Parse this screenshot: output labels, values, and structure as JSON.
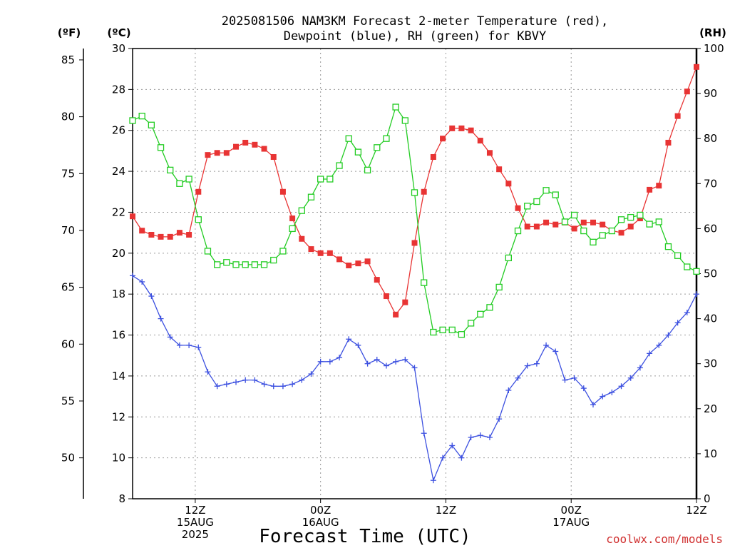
{
  "chart_data": {
    "type": "line",
    "title_line1": "2025081506 NAM3KM Forecast 2-meter Temperature (red),",
    "title_line2": "Dewpoint (blue), RH (green) for KBVY",
    "xlabel": "Forecast Time (UTC)",
    "credit": "coolwx.com/models",
    "left_unit_f": "(ºF)",
    "left_unit_c": "(ºC)",
    "right_unit": "(RH)",
    "x_start_hour": 6,
    "x_end_hour": 60,
    "x_ticks": [
      {
        "hour": 12,
        "lines": [
          "12Z",
          "15AUG",
          "2025"
        ]
      },
      {
        "hour": 24,
        "lines": [
          "00Z",
          "16AUG"
        ]
      },
      {
        "hour": 36,
        "lines": [
          "12Z"
        ]
      },
      {
        "hour": 48,
        "lines": [
          "00Z",
          "17AUG"
        ]
      },
      {
        "hour": 60,
        "lines": [
          "12Z"
        ]
      }
    ],
    "celsius_axis": {
      "min": 8,
      "max": 30,
      "ticks": [
        8,
        10,
        12,
        14,
        16,
        18,
        20,
        22,
        24,
        26,
        28,
        30
      ]
    },
    "fahrenheit_axis": {
      "ticks": [
        50,
        55,
        60,
        65,
        70,
        75,
        80,
        85
      ]
    },
    "rh_axis": {
      "min": 0,
      "max": 100,
      "ticks": [
        0,
        10,
        20,
        30,
        40,
        50,
        60,
        70,
        80,
        90,
        100
      ]
    },
    "series": [
      {
        "name": "Temperature",
        "color": "#e83434",
        "marker": "filled-square",
        "axis": "celsius",
        "values": [
          21.8,
          21.1,
          20.9,
          20.8,
          20.8,
          21.0,
          20.9,
          23.0,
          24.8,
          24.9,
          24.9,
          25.2,
          25.4,
          25.3,
          25.1,
          24.7,
          23.0,
          21.7,
          20.7,
          20.2,
          20.0,
          20.0,
          19.7,
          19.4,
          19.5,
          19.6,
          18.7,
          17.9,
          17.0,
          17.6,
          20.5,
          23.0,
          24.7,
          25.6,
          26.1,
          26.1,
          26.0,
          25.5,
          24.9,
          24.1,
          23.4,
          22.2,
          21.3,
          21.3,
          21.5,
          21.4,
          21.5,
          21.2,
          21.5,
          21.5,
          21.4,
          21.1,
          21.0,
          21.3,
          21.7,
          23.1,
          23.3,
          25.4,
          26.7,
          27.9,
          29.1
        ]
      },
      {
        "name": "Dewpoint",
        "color": "#3c50e0",
        "marker": "plus",
        "axis": "celsius",
        "values": [
          18.9,
          18.6,
          17.9,
          16.8,
          15.9,
          15.5,
          15.5,
          15.4,
          14.2,
          13.5,
          13.6,
          13.7,
          13.8,
          13.8,
          13.6,
          13.5,
          13.5,
          13.6,
          13.8,
          14.1,
          14.7,
          14.7,
          14.9,
          15.8,
          15.5,
          14.6,
          14.8,
          14.5,
          14.7,
          14.8,
          14.4,
          11.2,
          8.9,
          10.0,
          10.6,
          10.0,
          11.0,
          11.1,
          11.0,
          11.9,
          13.3,
          13.9,
          14.5,
          14.6,
          15.5,
          15.2,
          13.8,
          13.9,
          13.4,
          12.6,
          13.0,
          13.2,
          13.5,
          13.9,
          14.4,
          15.1,
          15.5,
          16.0,
          16.6,
          17.1,
          18.0
        ]
      },
      {
        "name": "RH",
        "color": "#22cc22",
        "marker": "open-square",
        "axis": "rh",
        "values": [
          84,
          85,
          83,
          78,
          73,
          70,
          71,
          62,
          55,
          52,
          52.5,
          52,
          52,
          52,
          52,
          53,
          55,
          60,
          64,
          67,
          71,
          71,
          74,
          80,
          77,
          73,
          78,
          80,
          87,
          84,
          68,
          48,
          37,
          37.5,
          37.5,
          36.5,
          39,
          41,
          42.5,
          47,
          53.5,
          59.5,
          65,
          66,
          68.5,
          67.5,
          61.5,
          63,
          59.5,
          57,
          58.5,
          59.5,
          62,
          62.5,
          63,
          61,
          61.5,
          56,
          54,
          51.5,
          50.5
        ]
      }
    ]
  }
}
